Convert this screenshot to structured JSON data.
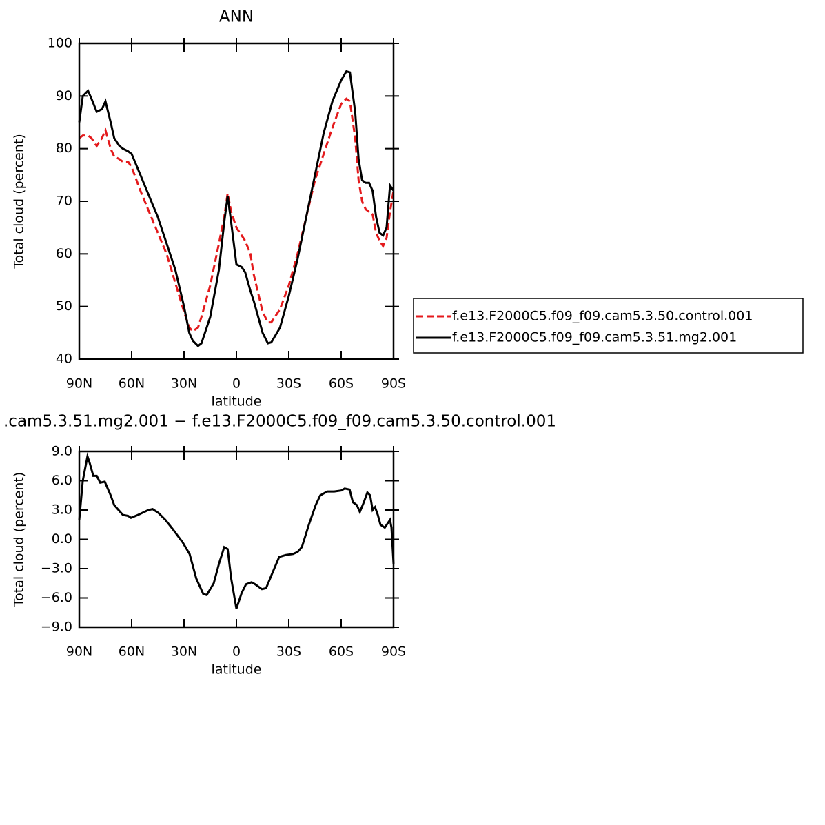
{
  "chart_data": [
    {
      "type": "line",
      "title": "ANN",
      "x_label": "latitude",
      "y_label": "Total cloud (percent)",
      "x": [
        90,
        88,
        85,
        83,
        80,
        77,
        75,
        72,
        70,
        67,
        65,
        62,
        60,
        55,
        50,
        45,
        40,
        35,
        30,
        27,
        25,
        22,
        20,
        15,
        10,
        7,
        5,
        3,
        0,
        -3,
        -5,
        -8,
        -10,
        -15,
        -18,
        -20,
        -25,
        -30,
        -35,
        -40,
        -45,
        -50,
        -55,
        -60,
        -63,
        -65,
        -68,
        -70,
        -72,
        -74,
        -76,
        -78,
        -80,
        -82,
        -84,
        -86,
        -88,
        -90
      ],
      "series": [
        {
          "name": "f.e13.F2000C5.f09_f09.cam5.3.50.control.001",
          "color": "#e41a1c",
          "line_style": "dashed",
          "values": [
            82,
            82.5,
            82.5,
            82,
            80.5,
            82,
            83.5,
            80,
            78.5,
            78,
            77.5,
            77.5,
            76.5,
            72,
            68,
            64,
            60,
            54.5,
            49,
            46,
            45.3,
            46,
            48,
            54,
            62,
            67,
            71.5,
            68,
            65,
            63.5,
            62.5,
            60,
            56,
            49,
            47,
            47,
            49.5,
            54,
            60,
            67,
            74,
            79,
            84,
            88.5,
            89.5,
            89,
            82,
            74,
            70,
            68.5,
            68,
            67.5,
            64,
            62.5,
            61.5,
            63,
            68,
            72
          ]
        },
        {
          "name": "f.e13.F2000C5.f09_f09.cam5.3.51.mg2.001",
          "color": "#000000",
          "line_style": "solid",
          "values": [
            85,
            90,
            91,
            89.5,
            87,
            87.5,
            89,
            85,
            82,
            80.5,
            80,
            79.5,
            79,
            75,
            71,
            67,
            62,
            57,
            50,
            45,
            43.5,
            42.5,
            43,
            48,
            57,
            66,
            71,
            66,
            58,
            57.5,
            56.5,
            53,
            51,
            45,
            43,
            43.2,
            46,
            52,
            59,
            67,
            75,
            83,
            89,
            93,
            94.7,
            94.5,
            87,
            78,
            74,
            73.5,
            73.5,
            72,
            67,
            64,
            63.5,
            65,
            73,
            72
          ]
        }
      ],
      "xlim": [
        90,
        -90
      ],
      "xticks": [
        {
          "value": 90,
          "label": "90N"
        },
        {
          "value": 60,
          "label": "60N"
        },
        {
          "value": 30,
          "label": "30N"
        },
        0,
        {
          "value": -30,
          "label": "30S"
        },
        {
          "value": -60,
          "label": "60S"
        },
        {
          "value": -90,
          "label": "90S"
        }
      ],
      "ylim": [
        40,
        100
      ],
      "yticks": [
        40,
        50,
        60,
        70,
        80,
        90,
        100
      ],
      "grid": false,
      "legend": "right"
    },
    {
      "type": "line",
      "title": ".cam5.3.51.mg2.001 − f.e13.F2000C5.f09_f09.cam5.3.50.control.001",
      "x_label": "latitude",
      "y_label": "Total cloud (percent)",
      "x": [
        90,
        88,
        85.3,
        84,
        82,
        80,
        78,
        75.4,
        72,
        70,
        67.5,
        65,
        62,
        60.4,
        56.4,
        50.5,
        48,
        44.6,
        40.7,
        36.7,
        30.8,
        26.8,
        23,
        19,
        17,
        13,
        10,
        7,
        5,
        3,
        0,
        -3,
        -5.5,
        -8.7,
        -10.7,
        -14.6,
        -17,
        -20.5,
        -24.5,
        -28.4,
        -32.4,
        -35,
        -37.5,
        -41.5,
        -45.4,
        -48,
        -52,
        -56,
        -60,
        -62,
        -64.8,
        -66.7,
        -69,
        -70.7,
        -73,
        -75,
        -76.6,
        -78,
        -79.4,
        -81,
        -82.5,
        -85,
        -88,
        -88.8,
        -90
      ],
      "series": [
        {
          "color": "#000000",
          "line_style": "solid",
          "values": [
            2.0,
            6.0,
            8.5,
            7.8,
            6.5,
            6.5,
            5.8,
            5.9,
            4.5,
            3.5,
            3.0,
            2.5,
            2.4,
            2.2,
            2.5,
            3.0,
            3.1,
            2.7,
            2.0,
            1.1,
            -0.3,
            -1.5,
            -4.0,
            -5.6,
            -5.7,
            -4.5,
            -2.5,
            -0.8,
            -1.0,
            -4.0,
            -7.1,
            -5.5,
            -4.6,
            -4.4,
            -4.6,
            -5.1,
            -5.0,
            -3.5,
            -1.8,
            -1.6,
            -1.5,
            -1.3,
            -0.8,
            1.5,
            3.5,
            4.5,
            4.9,
            4.9,
            5.0,
            5.2,
            5.1,
            3.8,
            3.5,
            2.8,
            3.8,
            4.8,
            4.5,
            3.0,
            3.3,
            2.5,
            1.5,
            1.2,
            2.0,
            1.2,
            -2.5
          ]
        }
      ],
      "xlim": [
        90,
        -90
      ],
      "xticks": [
        {
          "value": 90,
          "label": "90N"
        },
        {
          "value": 60,
          "label": "60N"
        },
        {
          "value": 30,
          "label": "30N"
        },
        0,
        {
          "value": -30,
          "label": "30S"
        },
        {
          "value": -60,
          "label": "60S"
        },
        {
          "value": -90,
          "label": "90S"
        }
      ],
      "ylim": [
        -9,
        9
      ],
      "yticks": [
        {
          "value": -9,
          "label": "−9.0"
        },
        {
          "value": -6,
          "label": "−6.0"
        },
        {
          "value": -3,
          "label": "−3.0"
        },
        {
          "value": 0,
          "label": "0.0"
        },
        {
          "value": 3,
          "label": "3.0"
        },
        {
          "value": 6,
          "label": "6.0"
        },
        {
          "value": 9,
          "label": "9.0"
        }
      ],
      "grid": false
    }
  ]
}
